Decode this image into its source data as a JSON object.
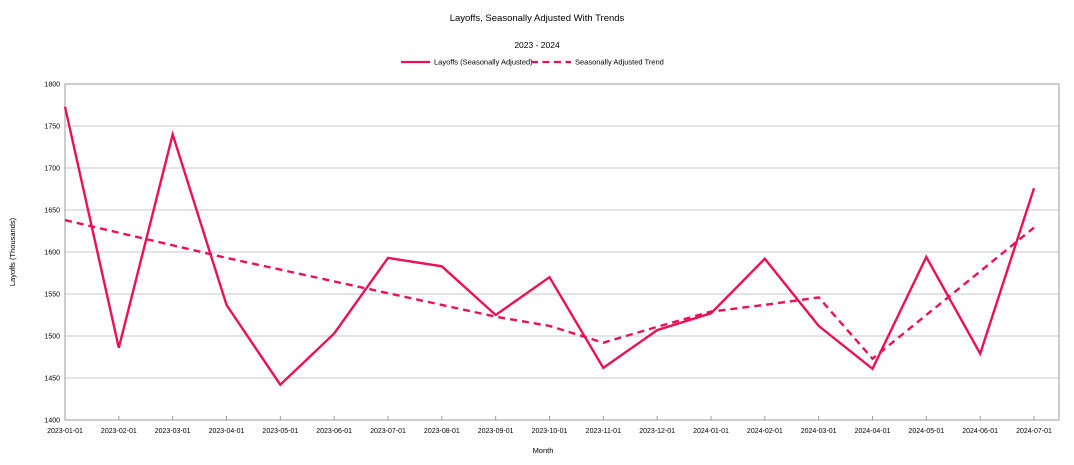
{
  "title": "Layoffs, Seasonally Adjusted With Trends",
  "subtitle": "2023 - 2024",
  "colors": {
    "series": "#ec1056",
    "grid": "#c9c9c9",
    "border": "#9b9b9b",
    "text": "#000000",
    "background": "#ffffff"
  },
  "chart_data": {
    "type": "line",
    "title": "Layoffs, Seasonally Adjusted With Trends",
    "subtitle": "2023 - 2024",
    "xlabel": "Month",
    "ylabel": "Layoffs (Thousands)",
    "ylim": [
      1400,
      1800
    ],
    "ytick_step": 50,
    "ytick_labels": [
      "1400",
      "1450",
      "1500",
      "1550",
      "1600",
      "1650",
      "1700",
      "1750",
      "1800"
    ],
    "grid": "horizontal",
    "legend_position": "top-center",
    "categories": [
      "2023-01-01",
      "2023-02-01",
      "2023-03-01",
      "2023-04-01",
      "2023-05-01",
      "2023-06-01",
      "2023-07-01",
      "2023-08-01",
      "2023-09-01",
      "2023-10-01",
      "2023-11-01",
      "2023-12-01",
      "2024-01-01",
      "2024-02-01",
      "2024-03-01",
      "2024-04-01",
      "2024-05-01",
      "2024-06-01",
      "2024-07-01"
    ],
    "series": [
      {
        "name": "Layoffs (Seasonally Adjusted)",
        "style": "solid",
        "values": [
          1773,
          1486,
          1740,
          1537,
          1442,
          1503,
          1593,
          1583,
          1525,
          1570,
          1462,
          1507,
          1527,
          1592,
          1512,
          1461,
          1594,
          1479,
          1676
        ]
      },
      {
        "name": "Seasonally Adjusted Trend",
        "style": "dashed",
        "values": [
          1638,
          1623,
          1608,
          1593,
          1579,
          1565,
          1551,
          1537,
          1523,
          1512,
          1492,
          1511,
          1529,
          1537,
          1546,
          1473,
          1525,
          1577,
          1629
        ]
      }
    ]
  }
}
